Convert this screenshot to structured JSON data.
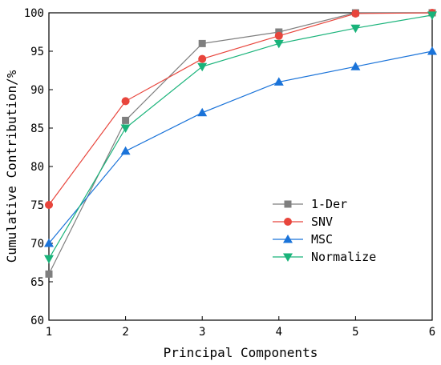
{
  "chart_data": {
    "type": "line",
    "xlabel": "Principal Components",
    "ylabel": "Cumulative Contribution/%",
    "x": [
      1,
      2,
      3,
      4,
      5,
      6
    ],
    "xlim": [
      1,
      6
    ],
    "ylim": [
      60,
      100
    ],
    "xticks": [
      "1",
      "2",
      "3",
      "4",
      "5",
      "6"
    ],
    "yticks": [
      "60",
      "65",
      "70",
      "75",
      "80",
      "85",
      "90",
      "95",
      "100"
    ],
    "grid": false,
    "legend_position": "lower-right",
    "series": [
      {
        "name": "1-Der",
        "marker": "square",
        "color": "#7f7f7f",
        "values": [
          66,
          86,
          96,
          97.5,
          100,
          100
        ]
      },
      {
        "name": "SNV",
        "marker": "circle",
        "color": "#e8453c",
        "values": [
          75,
          88.5,
          94,
          97,
          99.9,
          100
        ]
      },
      {
        "name": "MSC",
        "marker": "triangle-up",
        "color": "#1a73d9",
        "values": [
          70,
          82,
          87,
          91,
          93,
          95
        ]
      },
      {
        "name": "Normalize",
        "marker": "triangle-down",
        "color": "#19b37a",
        "values": [
          68,
          85,
          93,
          96,
          98,
          99.7
        ]
      }
    ]
  }
}
